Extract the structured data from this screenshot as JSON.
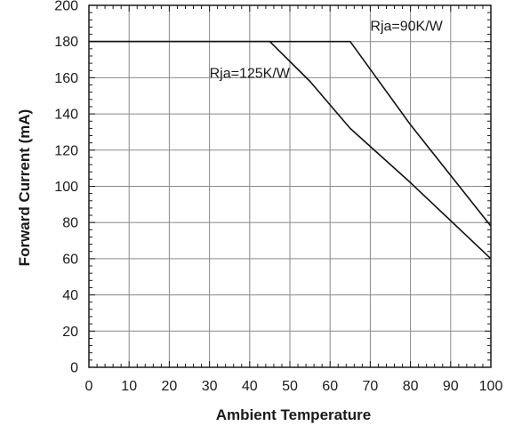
{
  "chart_data": {
    "type": "line",
    "title": "",
    "xlabel": "Ambient Temperature",
    "ylabel": "Forward Current (mA)",
    "xlim": [
      0,
      100
    ],
    "ylim": [
      0,
      200
    ],
    "x_ticks": [
      "0",
      "10",
      "20",
      "30",
      "40",
      "50",
      "60",
      "70",
      "80",
      "90",
      "100"
    ],
    "y_ticks": [
      "0",
      "20",
      "40",
      "60",
      "80",
      "100",
      "120",
      "140",
      "160",
      "180",
      "200"
    ],
    "grid": true,
    "series": [
      {
        "name": "Rja=125K/W",
        "points": [
          [
            0,
            180
          ],
          [
            45,
            180
          ],
          [
            55,
            158
          ],
          [
            65,
            132
          ],
          [
            80,
            102
          ],
          [
            100,
            60
          ]
        ]
      },
      {
        "name": "Rja=90K/W",
        "points": [
          [
            0,
            180
          ],
          [
            65,
            180
          ],
          [
            80,
            134
          ],
          [
            100,
            78
          ]
        ]
      }
    ],
    "annotations": [
      {
        "text": "Rja=90K/W",
        "x": 70,
        "y": 186
      },
      {
        "text": "Rja=125K/W",
        "x": 30,
        "y": 160
      }
    ]
  }
}
